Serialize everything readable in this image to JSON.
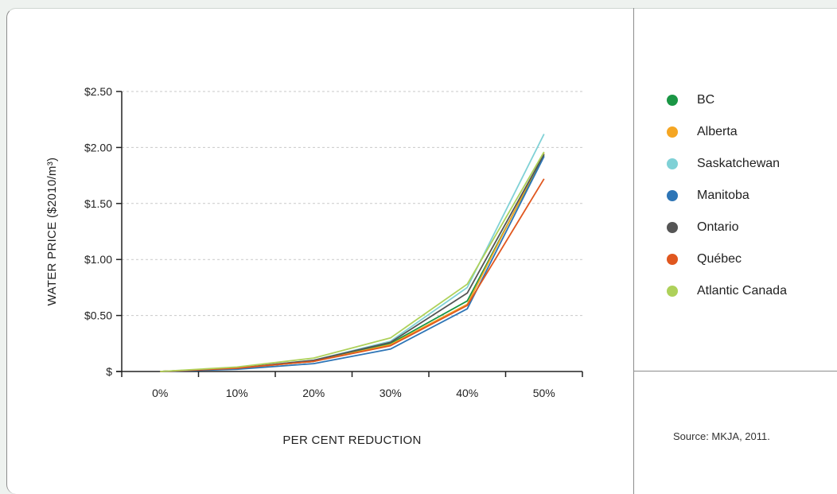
{
  "chart_data": {
    "type": "line",
    "xlabel": "PER CENT REDUCTION",
    "ylabel": "WATER PRICE ($2010/m³)",
    "categories": [
      "0%",
      "10%",
      "20%",
      "30%",
      "40%",
      "50%"
    ],
    "x": [
      0,
      10,
      20,
      30,
      40,
      50
    ],
    "ylim": [
      0,
      2.5
    ],
    "yticks": [
      0,
      0.5,
      1.0,
      1.5,
      2.0,
      2.5
    ],
    "ytick_labels": [
      "$",
      "$0.50",
      "$1.00",
      "$1.50",
      "$2.00",
      "$2.50"
    ],
    "grid": "horizontal dashed",
    "legend_position": "right",
    "series": [
      {
        "name": "BC",
        "color": "#1a9645",
        "values": [
          0,
          0.03,
          0.09,
          0.25,
          0.63,
          1.93
        ]
      },
      {
        "name": "Alberta",
        "color": "#f5a623",
        "values": [
          0,
          0.03,
          0.09,
          0.24,
          0.6,
          1.95
        ]
      },
      {
        "name": "Saskatchewan",
        "color": "#7fd1d6",
        "values": [
          0,
          0.03,
          0.1,
          0.27,
          0.75,
          2.12
        ]
      },
      {
        "name": "Manitoba",
        "color": "#2e75b6",
        "values": [
          0,
          0.02,
          0.07,
          0.2,
          0.56,
          1.92
        ]
      },
      {
        "name": "Ontario",
        "color": "#555555",
        "values": [
          0,
          0.03,
          0.1,
          0.26,
          0.7,
          1.94
        ]
      },
      {
        "name": "Québec",
        "color": "#e0571f",
        "values": [
          0,
          0.03,
          0.09,
          0.23,
          0.59,
          1.72
        ]
      },
      {
        "name": "Atlantic Canada",
        "color": "#aed15a",
        "values": [
          0,
          0.04,
          0.12,
          0.3,
          0.78,
          1.96
        ]
      }
    ]
  },
  "source_text": "Source: MKJA, 2011."
}
